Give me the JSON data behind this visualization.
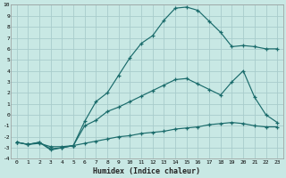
{
  "xlabel": "Humidex (Indice chaleur)",
  "bg_color": "#c8e8e4",
  "grid_color": "#a8cccc",
  "line_color": "#1a6b6b",
  "xlim": [
    -0.5,
    23.5
  ],
  "ylim": [
    -4,
    10
  ],
  "line1_x": [
    0,
    1,
    2,
    3,
    4,
    5,
    6,
    7,
    8,
    9,
    10,
    11,
    12,
    13,
    14,
    15,
    16,
    17,
    18,
    19,
    20,
    21,
    22,
    23
  ],
  "line1_y": [
    -2.5,
    -2.7,
    -2.5,
    -3.2,
    -3.0,
    -2.8,
    -0.6,
    1.2,
    2.0,
    3.6,
    5.2,
    6.5,
    7.2,
    8.6,
    9.7,
    9.8,
    9.5,
    8.5,
    7.5,
    6.2,
    6.3,
    6.2,
    6.0,
    6.0
  ],
  "line2_x": [
    0,
    1,
    2,
    3,
    4,
    5,
    6,
    7,
    8,
    9,
    10,
    11,
    12,
    13,
    14,
    15,
    16,
    17,
    18,
    19,
    20,
    21,
    22,
    23
  ],
  "line2_y": [
    -2.5,
    -2.7,
    -2.5,
    -3.1,
    -3.0,
    -2.8,
    -1.0,
    -0.5,
    0.3,
    0.7,
    1.2,
    1.7,
    2.2,
    2.7,
    3.2,
    3.3,
    2.8,
    2.3,
    1.8,
    3.0,
    4.0,
    1.6,
    0.0,
    -0.7
  ],
  "line3_x": [
    0,
    1,
    2,
    3,
    4,
    5,
    6,
    7,
    8,
    9,
    10,
    11,
    12,
    13,
    14,
    15,
    16,
    17,
    18,
    19,
    20,
    21,
    22,
    23
  ],
  "line3_y": [
    -2.5,
    -2.7,
    -2.6,
    -2.9,
    -2.9,
    -2.8,
    -2.6,
    -2.4,
    -2.2,
    -2.0,
    -1.9,
    -1.7,
    -1.6,
    -1.5,
    -1.3,
    -1.2,
    -1.1,
    -0.9,
    -0.8,
    -0.7,
    -0.8,
    -1.0,
    -1.1,
    -1.1
  ]
}
